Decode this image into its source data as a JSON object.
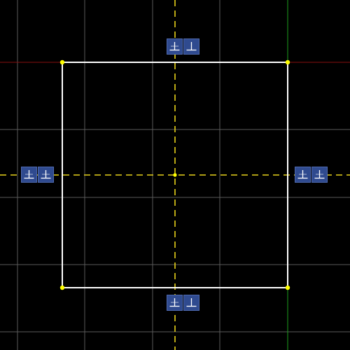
{
  "canvas": {
    "background": "#000000",
    "grid_color": "#5a5a5a",
    "axis_x_color": "#8a1010",
    "axis_y_color": "#1ea01e",
    "construction_line_color": "#e8d21a",
    "geometry_color": "#ffffff",
    "vertex_color": "#ffff00"
  },
  "sketch": {
    "shape": "rectangle",
    "construction_lines": [
      "horizontal-centerline",
      "vertical-centerline"
    ],
    "vertices": [
      "top-left",
      "top-right",
      "bottom-right",
      "bottom-left",
      "center"
    ]
  },
  "constraint_badges": {
    "icon": "perpendicular-icon",
    "badge_color": "#2f4a8f",
    "groups": [
      {
        "edge": "top",
        "count": 2
      },
      {
        "edge": "left",
        "count": 2
      },
      {
        "edge": "right",
        "count": 2
      },
      {
        "edge": "bottom",
        "count": 2
      }
    ]
  }
}
